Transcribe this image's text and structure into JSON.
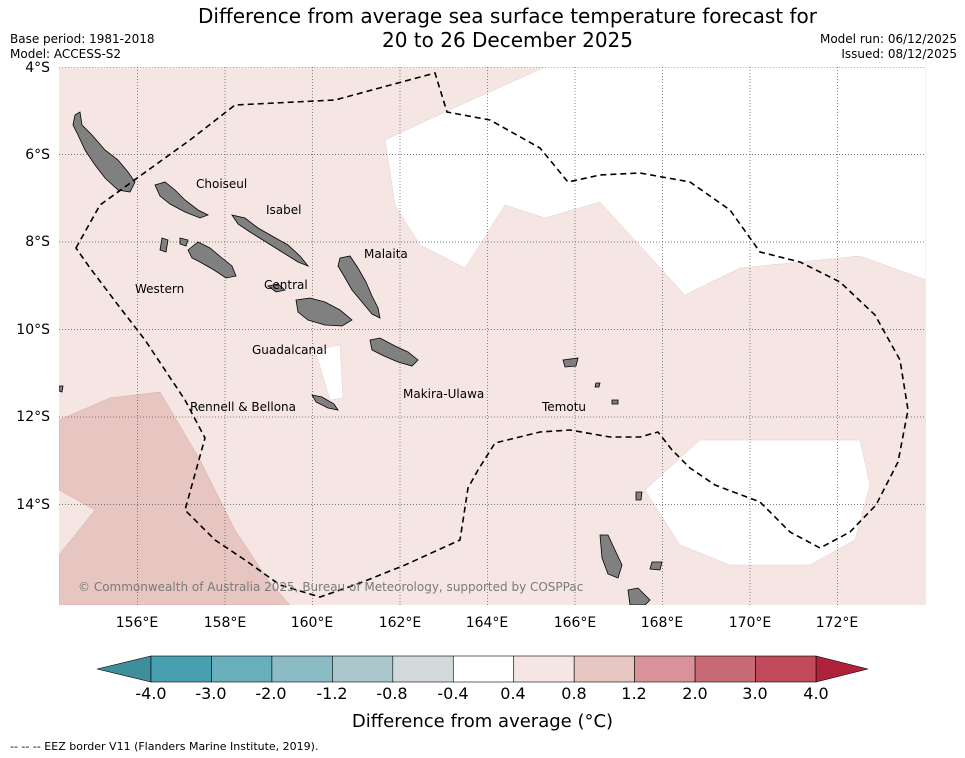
{
  "title_line1": "Difference from average sea surface temperature forecast for",
  "title_line2": "20 to 26 December 2025",
  "base_period": "Base period: 1981-2018",
  "model": "Model: ACCESS-S2",
  "model_run": "Model run: 06/12/2025",
  "issued": "Issued: 08/12/2025",
  "lat_labels": [
    "4°S",
    "6°S",
    "8°S",
    "10°S",
    "12°S",
    "14°S"
  ],
  "lon_labels": [
    "156°E",
    "158°E",
    "160°E",
    "162°E",
    "164°E",
    "166°E",
    "168°E",
    "170°E",
    "172°E"
  ],
  "regions": {
    "choiseul": "Choiseul",
    "isabel": "Isabel",
    "malaita": "Malaita",
    "western": "Western",
    "central": "Central",
    "guadalcanal": "Guadalcanal",
    "makira": "Makira-Ulawa",
    "rennell": "Rennell & Bellona",
    "temotu": "Temotu"
  },
  "credit": "© Commonwealth of Australia 2025, Bureau of Meteorology, supported by COSPPac",
  "colorbar": {
    "title": "Difference from average (°C)",
    "ticks": [
      "-4.0",
      "-3.0",
      "-2.0",
      "-1.2",
      "-0.8",
      "-0.4",
      "0.4",
      "0.8",
      "1.2",
      "2.0",
      "3.0",
      "4.0"
    ],
    "colors": [
      "#47a0b0",
      "#69aebb",
      "#8bbcc5",
      "#aac8cc",
      "#d1d9da",
      "#ffffff",
      "#f5e6e4",
      "#e7c6c1",
      "#d9919a",
      "#c86a76",
      "#c04a5a"
    ],
    "under_color": "#3f8e9c",
    "over_color": "#b0223a"
  },
  "footer": "-- -- -- EEZ border V11 (Flanders Marine Institute, 2019)."
}
